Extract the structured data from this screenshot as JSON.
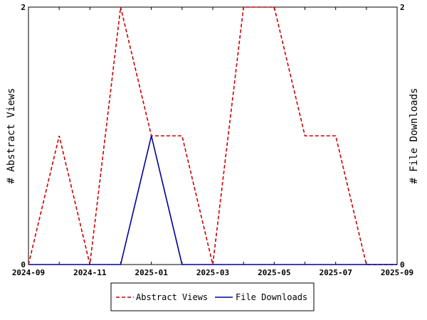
{
  "chart_data": {
    "type": "line",
    "x": [
      "2024-09",
      "2024-10",
      "2024-11",
      "2024-12",
      "2025-01",
      "2025-02",
      "2025-03",
      "2025-04",
      "2025-05",
      "2025-06",
      "2025-07",
      "2025-08",
      "2025-09"
    ],
    "x_tick_labels": [
      "2024-09",
      "2024-11",
      "2025-01",
      "2025-03",
      "2025-05",
      "2025-07",
      "2025-09"
    ],
    "series": [
      {
        "name": "Abstract Views",
        "axis": "left",
        "color": "#cc0000",
        "dash": "dashed",
        "values": [
          0,
          1,
          0,
          2,
          1,
          1,
          0,
          2,
          2,
          1,
          1,
          0,
          0
        ]
      },
      {
        "name": "File Downloads",
        "axis": "right",
        "color": "#000099",
        "dash": "solid",
        "values": [
          0,
          0,
          0,
          0,
          1,
          0,
          0,
          0,
          0,
          0,
          0,
          0,
          0
        ]
      }
    ],
    "ylabel_left": "# Abstract Views",
    "ylabel_right": "# File Downloads",
    "ylim_left": [
      0,
      2
    ],
    "ylim_right": [
      0,
      2
    ],
    "y_ticks_left": [
      "0",
      "2"
    ],
    "y_ticks_right": [
      "0",
      "2"
    ],
    "grid": false,
    "legend_position": "bottom"
  }
}
